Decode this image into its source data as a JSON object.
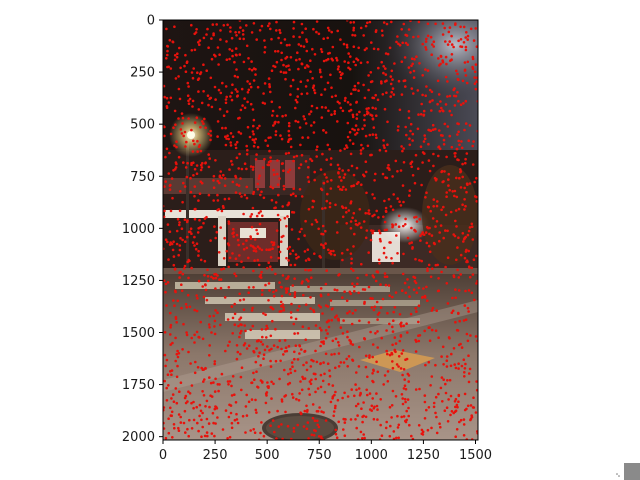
{
  "chart_data": {
    "type": "scatter",
    "background": "night street photograph (intersection with crosswalk, street lamps, lit storefronts)",
    "point_color": "#e8120c",
    "point_count_approx": 2500,
    "xlim": [
      0,
      1512
    ],
    "ylim": [
      2016,
      0
    ],
    "y_inverted": true,
    "x_ticks": [
      "0",
      "250",
      "500",
      "750",
      "1000",
      "1250",
      "1500"
    ],
    "x_tick_values": [
      0,
      250,
      500,
      750,
      1000,
      1250,
      1500
    ],
    "y_ticks": [
      "0",
      "250",
      "500",
      "750",
      "1000",
      "1250",
      "1500",
      "1750",
      "2000"
    ],
    "y_tick_values": [
      0,
      250,
      500,
      750,
      1000,
      1250,
      1500,
      1750,
      2000
    ],
    "grid": false,
    "legend": "none",
    "title": "",
    "xlabel": "",
    "ylabel": ""
  }
}
